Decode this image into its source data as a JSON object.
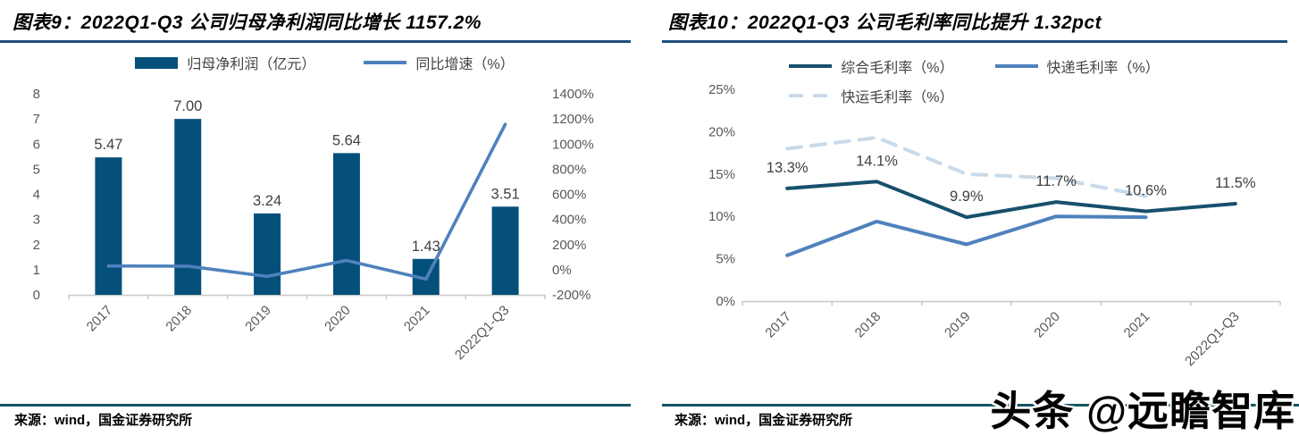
{
  "panels": [
    {
      "title": "图表9：2022Q1-Q3 公司归母净利润同比增长 1157.2%",
      "source": "来源：wind，国金证券研究所"
    },
    {
      "title": "图表10：2022Q1-Q3 公司毛利率同比提升 1.32pct",
      "source": "来源：wind，国金证券研究所"
    }
  ],
  "watermark": {
    "text": "头条 @远瞻智库"
  },
  "colors": {
    "bar_navy": "#05507b",
    "line_blue": "#4f81bd",
    "line_navy": "#17506c",
    "line_light_dashed": "#c9daea",
    "axis_text": "#595959",
    "data_label_text": "#404040",
    "axis_line": "#c8c8c8",
    "title_rule": "#1f4e79",
    "source_rule": "#155661"
  },
  "chart_data": [
    {
      "type": "bar",
      "title": "2022Q1-Q3 公司归母净利润同比增长 1157.2%",
      "categories": [
        "2017",
        "2018",
        "2019",
        "2020",
        "2021",
        "2022Q1-Q3"
      ],
      "series": [
        {
          "name": "归母净利润（亿元）",
          "chart_type": "bar",
          "axis": "left",
          "color": "#05507b",
          "values": [
            5.47,
            7.0,
            3.24,
            5.64,
            1.43,
            3.51
          ],
          "data_labels": [
            "5.47",
            "7.00",
            "3.24",
            "5.64",
            "1.43",
            "3.51"
          ]
        },
        {
          "name": "同比增速（%）",
          "chart_type": "line",
          "axis": "right",
          "color": "#4f81bd",
          "values": [
            30,
            28,
            -53.7,
            74.1,
            -74.6,
            1157.2
          ]
        }
      ],
      "left_axis": {
        "min": 0,
        "max": 8,
        "tick_labels": [
          "0",
          "1",
          "2",
          "3",
          "4",
          "5",
          "6",
          "7",
          "8"
        ]
      },
      "right_axis": {
        "min": -200,
        "max": 1400,
        "tick_labels": [
          "-200%",
          "0%",
          "200%",
          "400%",
          "600%",
          "800%",
          "1000%",
          "1200%",
          "1400%"
        ]
      },
      "grid": false,
      "legend_position": "top"
    },
    {
      "type": "line",
      "title": "2022Q1-Q3 公司毛利率同比提升 1.32pct",
      "categories": [
        "2017",
        "2018",
        "2019",
        "2020",
        "2021",
        "2022Q1-Q3"
      ],
      "series": [
        {
          "name": "综合毛利率（%）",
          "color": "#17506c",
          "dash": false,
          "values": [
            13.3,
            14.1,
            9.9,
            11.7,
            10.6,
            11.5
          ],
          "data_labels": [
            "13.3%",
            "14.1%",
            "9.9%",
            "11.7%",
            "10.6%",
            "11.5%"
          ]
        },
        {
          "name": "快递毛利率（%）",
          "color": "#4f81bd",
          "dash": false,
          "values": [
            5.4,
            9.4,
            6.7,
            10.0,
            9.9,
            null
          ]
        },
        {
          "name": "快运毛利率（%）",
          "color": "#c9daea",
          "dash": true,
          "values": [
            18.0,
            19.3,
            15.0,
            14.5,
            12.4,
            null
          ]
        }
      ],
      "y_axis": {
        "min": 0,
        "max": 25,
        "tick_labels": [
          "0%",
          "5%",
          "10%",
          "15%",
          "20%",
          "25%"
        ]
      },
      "grid": false,
      "legend_position": "top"
    }
  ]
}
